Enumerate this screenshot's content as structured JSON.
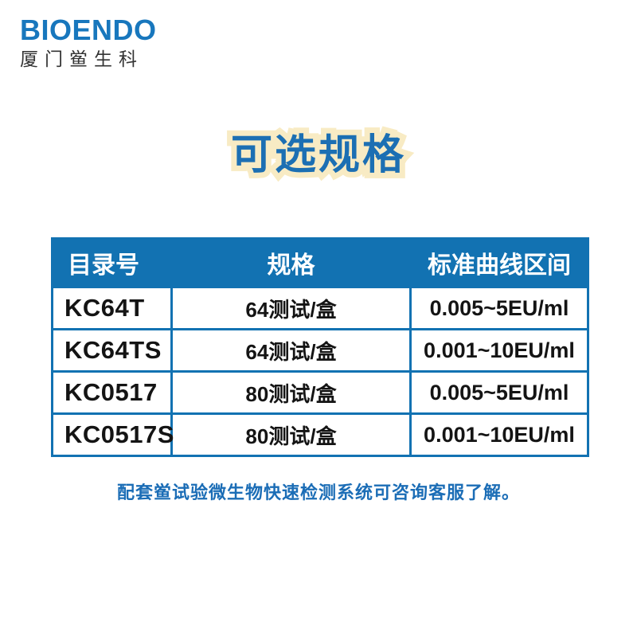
{
  "brand": {
    "name": "BIOENDO",
    "name_cn": "厦门鲎生科"
  },
  "title": "可选规格",
  "table": {
    "headers": [
      "目录号",
      "规格",
      "标准曲线区间"
    ],
    "rows": [
      {
        "catalog": "KC64T",
        "spec": "64测试/盒",
        "range": "0.005~5EU/ml"
      },
      {
        "catalog": "KC64TS",
        "spec": "64测试/盒",
        "range": "0.001~10EU/ml"
      },
      {
        "catalog": "KC0517",
        "spec": "80测试/盒",
        "range": "0.005~5EU/ml"
      },
      {
        "catalog": "KC0517S",
        "spec": "80测试/盒",
        "range": "0.001~10EU/ml"
      }
    ]
  },
  "footnote": "配套鲎试验微生物快速检测系统可咨询客服了解。",
  "colors": {
    "brand_blue": "#1877BD",
    "table_blue": "#1272B2",
    "title_blue": "#1C6FB3",
    "title_outline_cream": "#F8EBC4",
    "footnote_blue": "#1B6DB6",
    "body_text": "#141414"
  }
}
